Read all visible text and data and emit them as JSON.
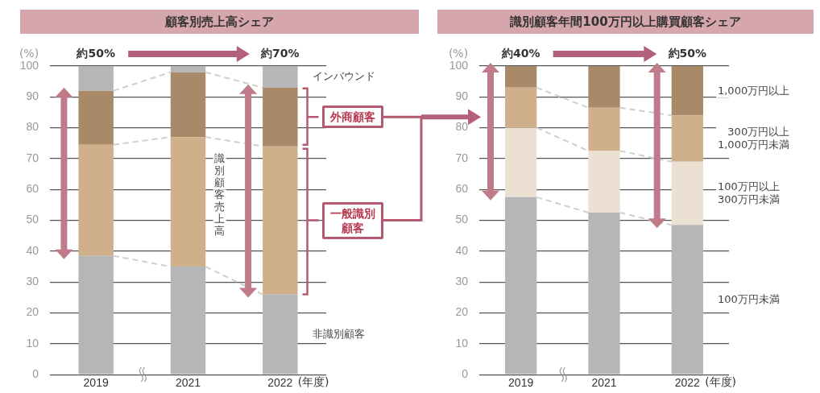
{
  "chart_data": [
    {
      "type": "bar",
      "stacked": true,
      "title": "顧客別売上高シェア",
      "ylabel": "(%)",
      "xlabel": "(年度)",
      "categories": [
        "2019",
        "2021",
        "2022"
      ],
      "series": [
        {
          "name": "非識別顧客",
          "color": "#b5b6b8",
          "values": [
            38.5,
            35,
            26
          ]
        },
        {
          "name": "一般識別顧客",
          "color": "#cfb08b",
          "values": [
            36,
            42,
            48
          ]
        },
        {
          "name": "外商顧客",
          "color": "#a88a69",
          "values": [
            17.5,
            21,
            19
          ]
        },
        {
          "name": "インバウンド",
          "color": "#b5b6b8",
          "values": [
            8,
            2,
            7
          ]
        }
      ],
      "ylim": [
        0,
        100
      ],
      "yticks": [
        0,
        10,
        20,
        30,
        40,
        50,
        60,
        70,
        80,
        90,
        100
      ],
      "grid": "y",
      "legend": false,
      "annotations": [
        "約50%",
        "約70%",
        "識別顧客売上高"
      ]
    },
    {
      "type": "bar",
      "stacked": true,
      "title": "識別顧客年間100万円以上購買顧客シェア",
      "ylabel": "(%)",
      "xlabel": "(年度)",
      "categories": [
        "2019",
        "2021",
        "2022"
      ],
      "series": [
        {
          "name": "100万円未満",
          "color": "#b5b6b8",
          "values": [
            57.5,
            52.5,
            48.5
          ]
        },
        {
          "name": "100万円以上\n300万円未満",
          "color": "#ebe0d1",
          "values": [
            22.5,
            20,
            20.5
          ]
        },
        {
          "name": "300万円以上\n1,000万円未満",
          "color": "#cfb08b",
          "values": [
            13,
            14,
            15
          ]
        },
        {
          "name": "1,000万円以上",
          "color": "#a88a69",
          "values": [
            7,
            13.5,
            16
          ]
        }
      ],
      "ylim": [
        0,
        100
      ],
      "yticks": [
        0,
        10,
        20,
        30,
        40,
        50,
        60,
        70,
        80,
        90,
        100
      ],
      "grid": "y",
      "legend": false,
      "annotations": [
        "約40%",
        "約50%"
      ]
    }
  ]
}
